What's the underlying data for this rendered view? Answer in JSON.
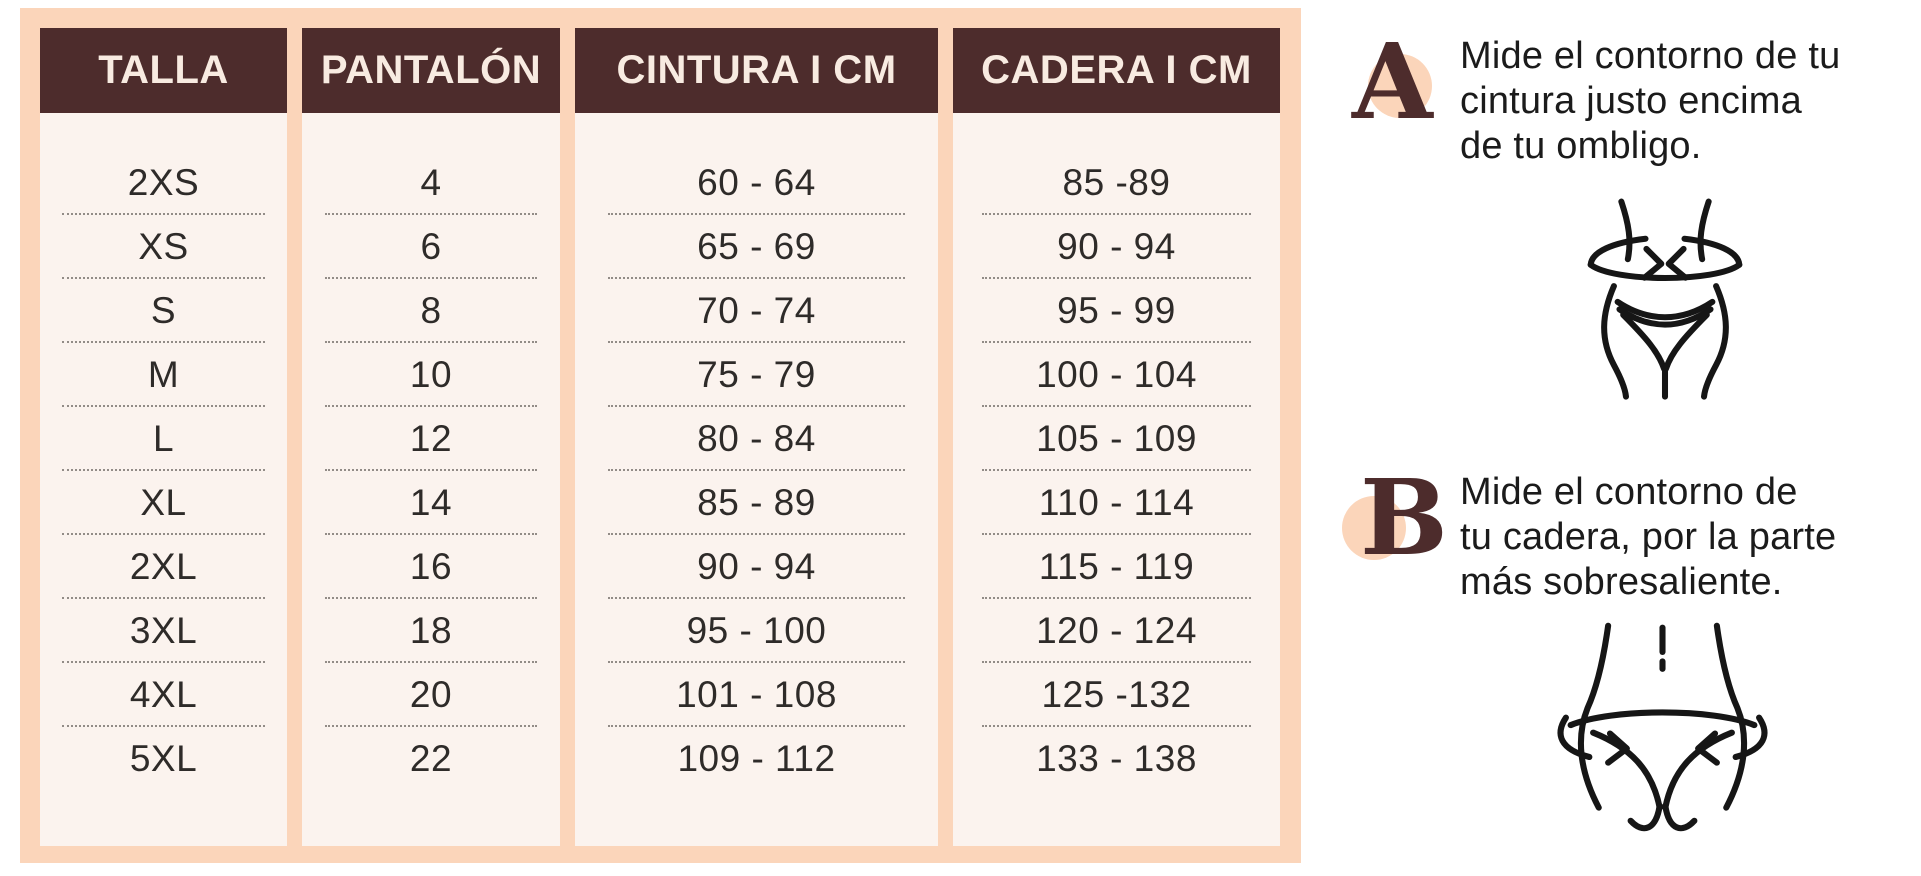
{
  "colors": {
    "frame_peach": "#fbd5ba",
    "header_brown": "#4d2c2c",
    "cell_cream": "#fbf3ee",
    "header_text": "#f8ebe1",
    "body_text": "#2e2b29",
    "icon_line": "#161616",
    "divider": "#6f6a65"
  },
  "table": {
    "headers": [
      "TALLA",
      "PANTALÓN",
      "CINTURA I CM",
      "CADERA I CM"
    ],
    "rows": [
      [
        "2XS",
        "4",
        "60 - 64",
        "85 -89"
      ],
      [
        "XS",
        "6",
        "65 - 69",
        "90 - 94"
      ],
      [
        "S",
        "8",
        "70 - 74",
        "95 - 99"
      ],
      [
        "M",
        "10",
        "75 - 79",
        "100 - 104"
      ],
      [
        "L",
        "12",
        "80 - 84",
        "105 - 109"
      ],
      [
        "XL",
        "14",
        "85 - 89",
        "110 - 114"
      ],
      [
        "2XL",
        "16",
        "90 - 94",
        "115 - 119"
      ],
      [
        "3XL",
        "18",
        "95 - 100",
        "120 - 124"
      ],
      [
        "4XL",
        "20",
        "101 - 108",
        "125 -132"
      ],
      [
        "5XL",
        "22",
        "109 - 112",
        "133 - 138"
      ]
    ]
  },
  "guide": {
    "a": {
      "letter": "A",
      "text": "Mide el contorno de tu\ncintura justo encima\nde tu ombligo.",
      "icon": "waist-measure-icon"
    },
    "b": {
      "letter": "B",
      "text": "Mide el contorno de\ntu cadera, por la parte\nmás sobresaliente.",
      "icon": "hip-measure-icon"
    }
  }
}
